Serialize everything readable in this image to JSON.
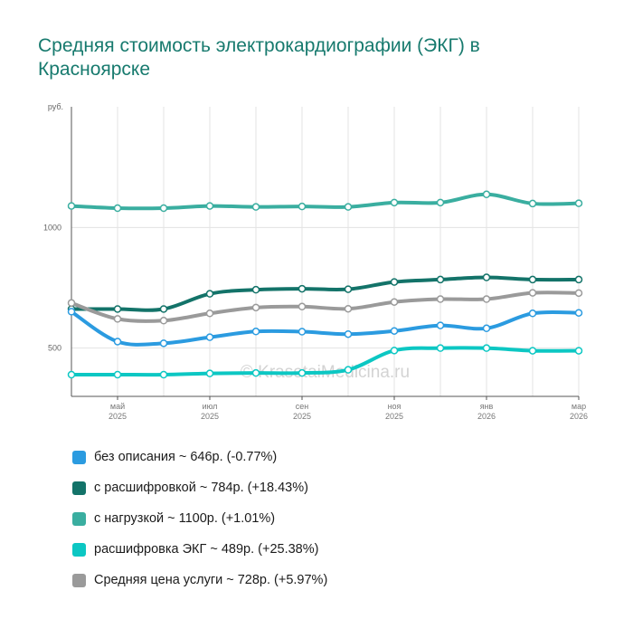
{
  "title": "Средняя стоимость электрокардиографии (ЭКГ) в Красноярске",
  "watermark": "© KrasotaiMedicina.ru",
  "chart_data": {
    "type": "line",
    "y_unit": "руб.",
    "ylim": [
      300,
      1500
    ],
    "yticks": [
      {
        "value": 500,
        "label": "500"
      },
      {
        "value": 1000,
        "label": "1000"
      }
    ],
    "grid": true,
    "x_points": 12,
    "x_ticks": [
      {
        "index": 1,
        "month": "май",
        "year": "2025"
      },
      {
        "index": 3,
        "month": "июл",
        "year": "2025"
      },
      {
        "index": 5,
        "month": "сен",
        "year": "2025"
      },
      {
        "index": 7,
        "month": "ноя",
        "year": "2025"
      },
      {
        "index": 9,
        "month": "янв",
        "year": "2026"
      },
      {
        "index": 11,
        "month": "мар",
        "year": "2026"
      }
    ],
    "series": [
      {
        "name": "с нагрузкой",
        "color": "#3aaea0",
        "values": [
          1089,
          1080,
          1080,
          1089,
          1085,
          1087,
          1085,
          1103,
          1103,
          1137,
          1099,
          1100
        ]
      },
      {
        "name": "с расшифровкой",
        "color": "#137369",
        "values": [
          662,
          662,
          662,
          725,
          742,
          746,
          744,
          774,
          784,
          793,
          784,
          784
        ]
      },
      {
        "name": "Средняя цена услуги",
        "color": "#9a9a9a",
        "values": [
          687,
          621,
          614,
          644,
          668,
          672,
          663,
          691,
          703,
          703,
          729,
          728
        ]
      },
      {
        "name": "без описания",
        "color": "#2b9be0",
        "values": [
          651,
          527,
          520,
          545,
          569,
          568,
          558,
          571,
          594,
          582,
          644,
          646
        ]
      },
      {
        "name": "расшифровка ЭКГ",
        "color": "#0cc7c3",
        "values": [
          390,
          390,
          390,
          395,
          397,
          397,
          410,
          490,
          500,
          500,
          489,
          489
        ]
      }
    ]
  },
  "legend": [
    {
      "color": "#2b9be0",
      "name": "без описания",
      "value": "~ 646р.",
      "change": "(-0.77%)"
    },
    {
      "color": "#137369",
      "name": "с расшифровкой",
      "value": "~ 784р.",
      "change": "(+18.43%)"
    },
    {
      "color": "#3aaea0",
      "name": "с нагрузкой",
      "value": "~ 1100р.",
      "change": "(+1.01%)"
    },
    {
      "color": "#0cc7c3",
      "name": "расшифровка ЭКГ",
      "value": "~ 489р.",
      "change": "(+25.38%)"
    },
    {
      "color": "#9a9a9a",
      "name": "Средняя цена услуги",
      "value": "~ 728р.",
      "change": "(+5.97%)"
    }
  ]
}
